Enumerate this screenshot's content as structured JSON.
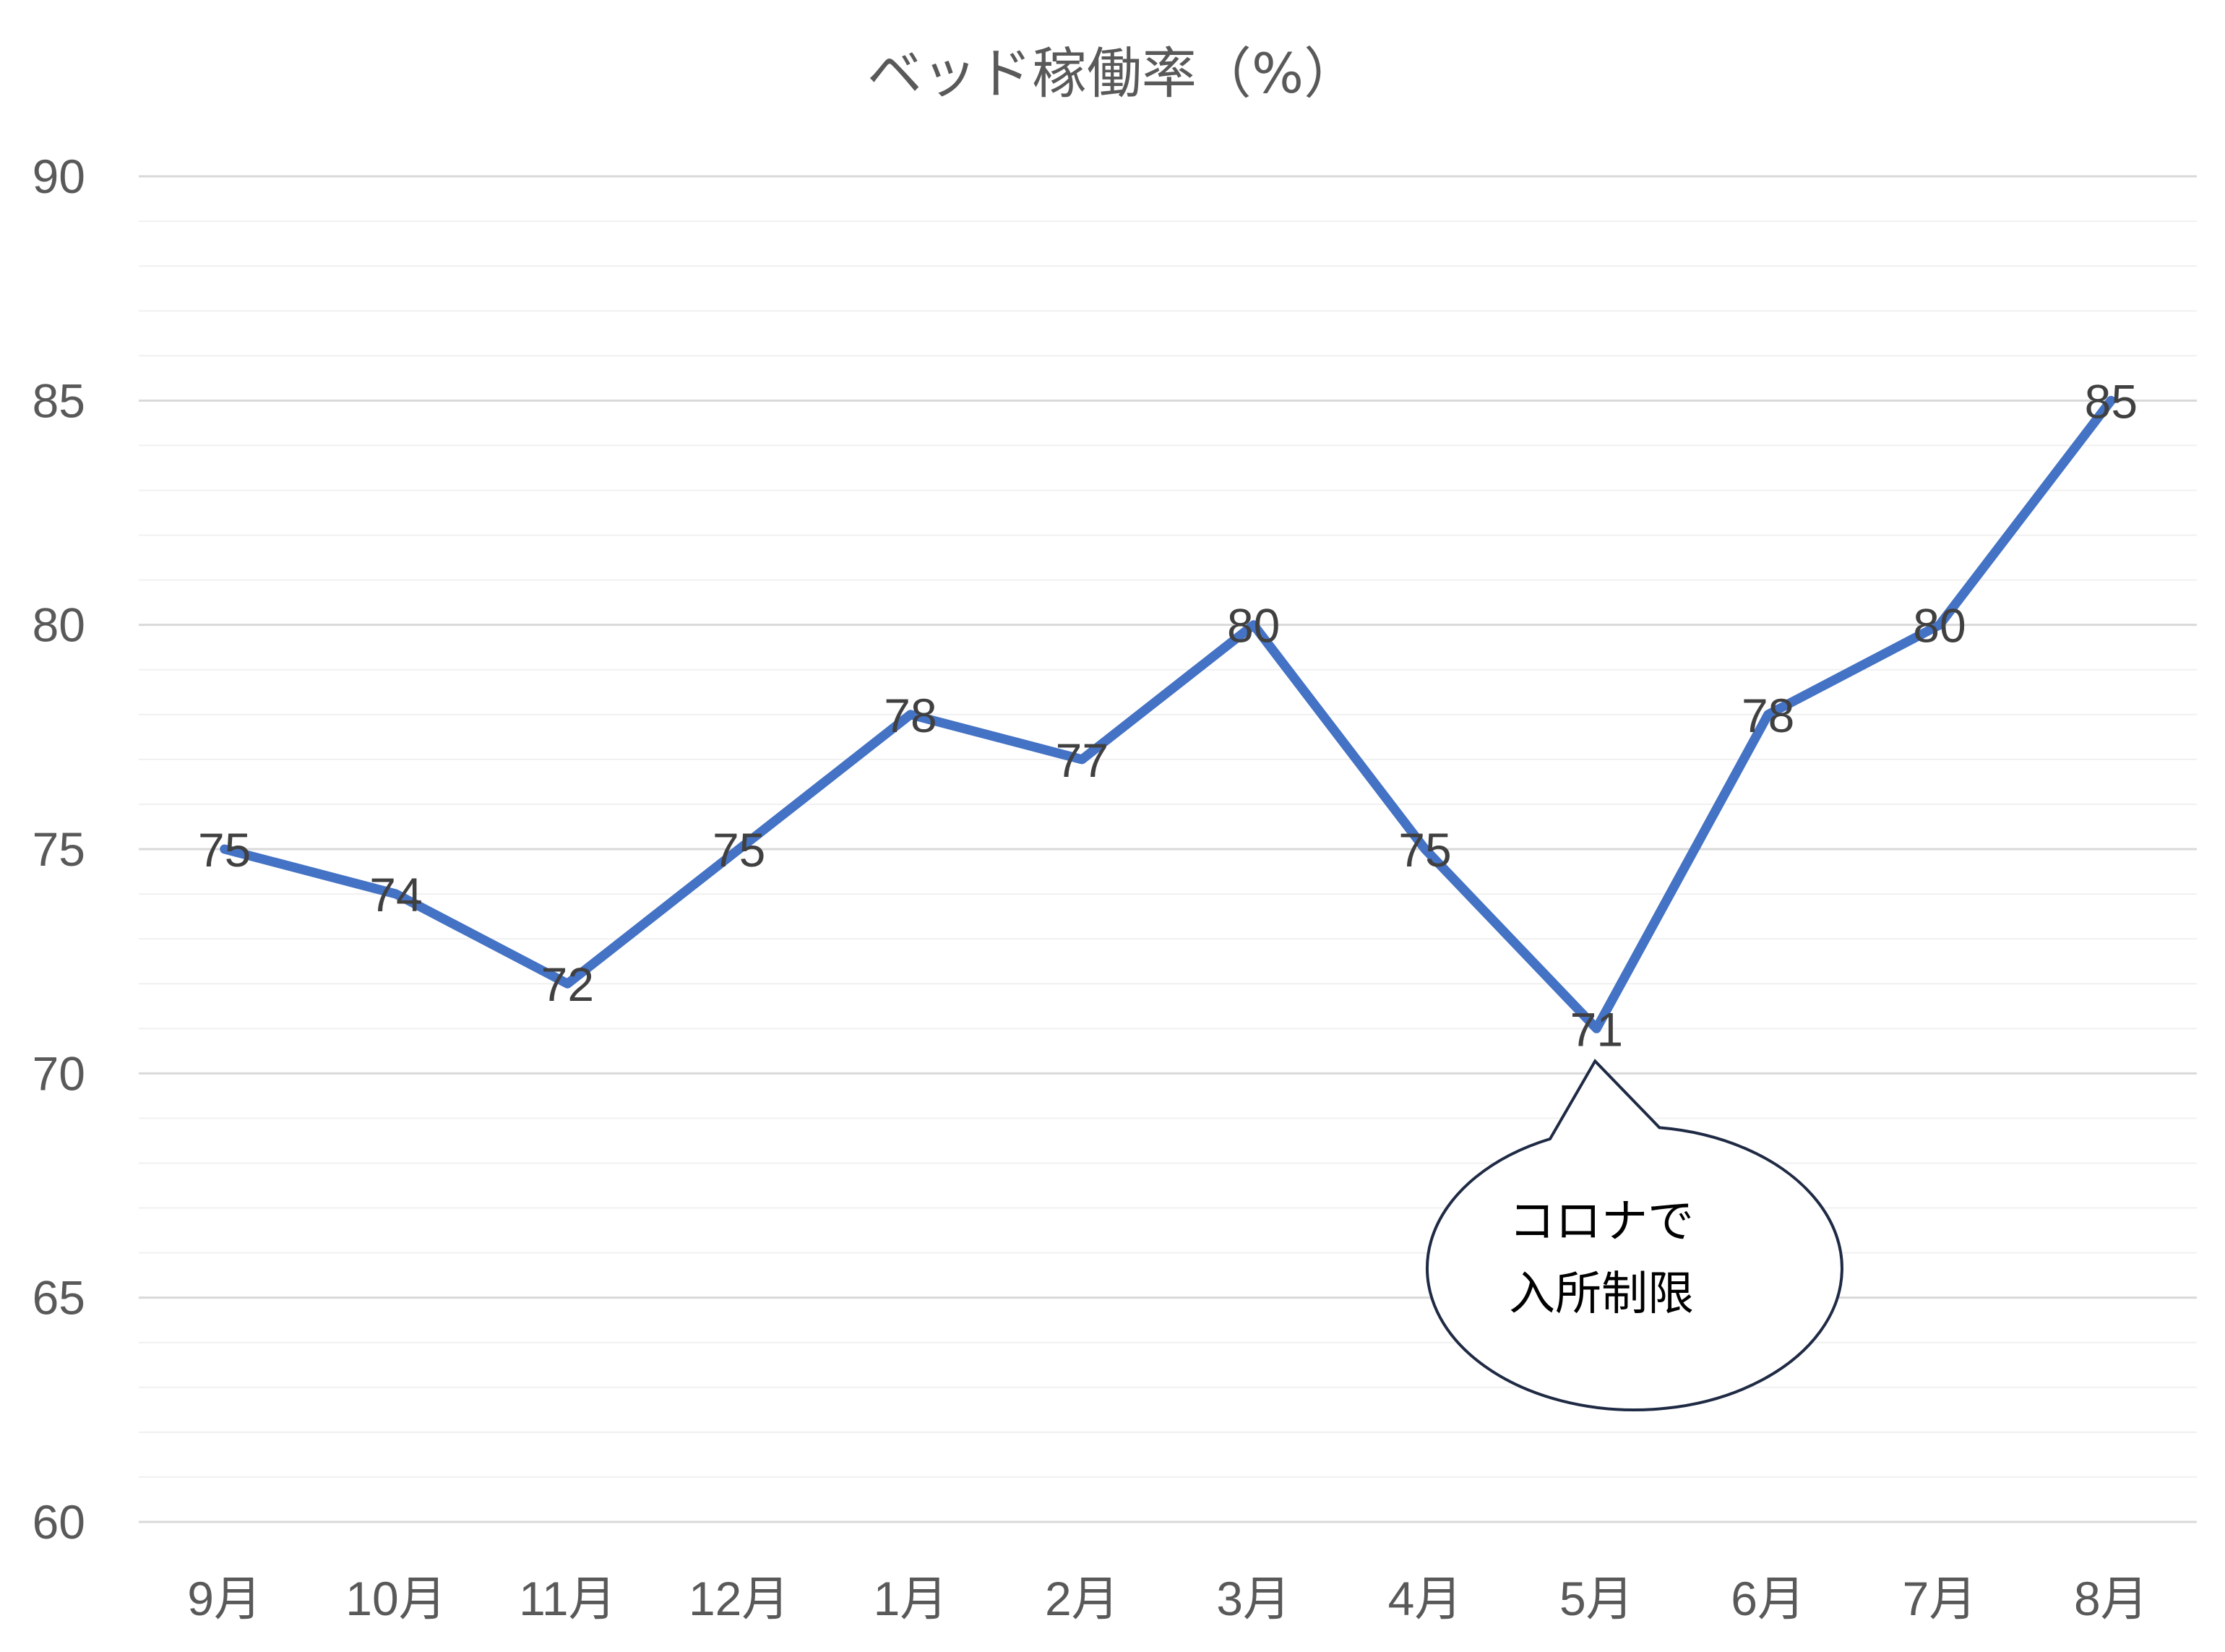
{
  "chart_data": {
    "type": "line",
    "title": "ベッド稼働率（%）",
    "categories": [
      "9月",
      "10月",
      "11月",
      "12月",
      "1月",
      "2月",
      "3月",
      "4月",
      "5月",
      "6月",
      "7月",
      "8月"
    ],
    "series": [
      {
        "values": [
          75,
          74,
          72,
          75,
          78,
          77,
          80,
          75,
          71,
          78,
          80,
          85
        ]
      }
    ],
    "ylim": [
      60,
      90
    ],
    "yticks": [
      60,
      65,
      70,
      75,
      80,
      85,
      90
    ],
    "grid": true,
    "data_labels": true,
    "line_color": "#4472C4",
    "annotation": {
      "category": "5月",
      "lines": [
        "コロナで",
        "入所制限"
      ]
    }
  }
}
